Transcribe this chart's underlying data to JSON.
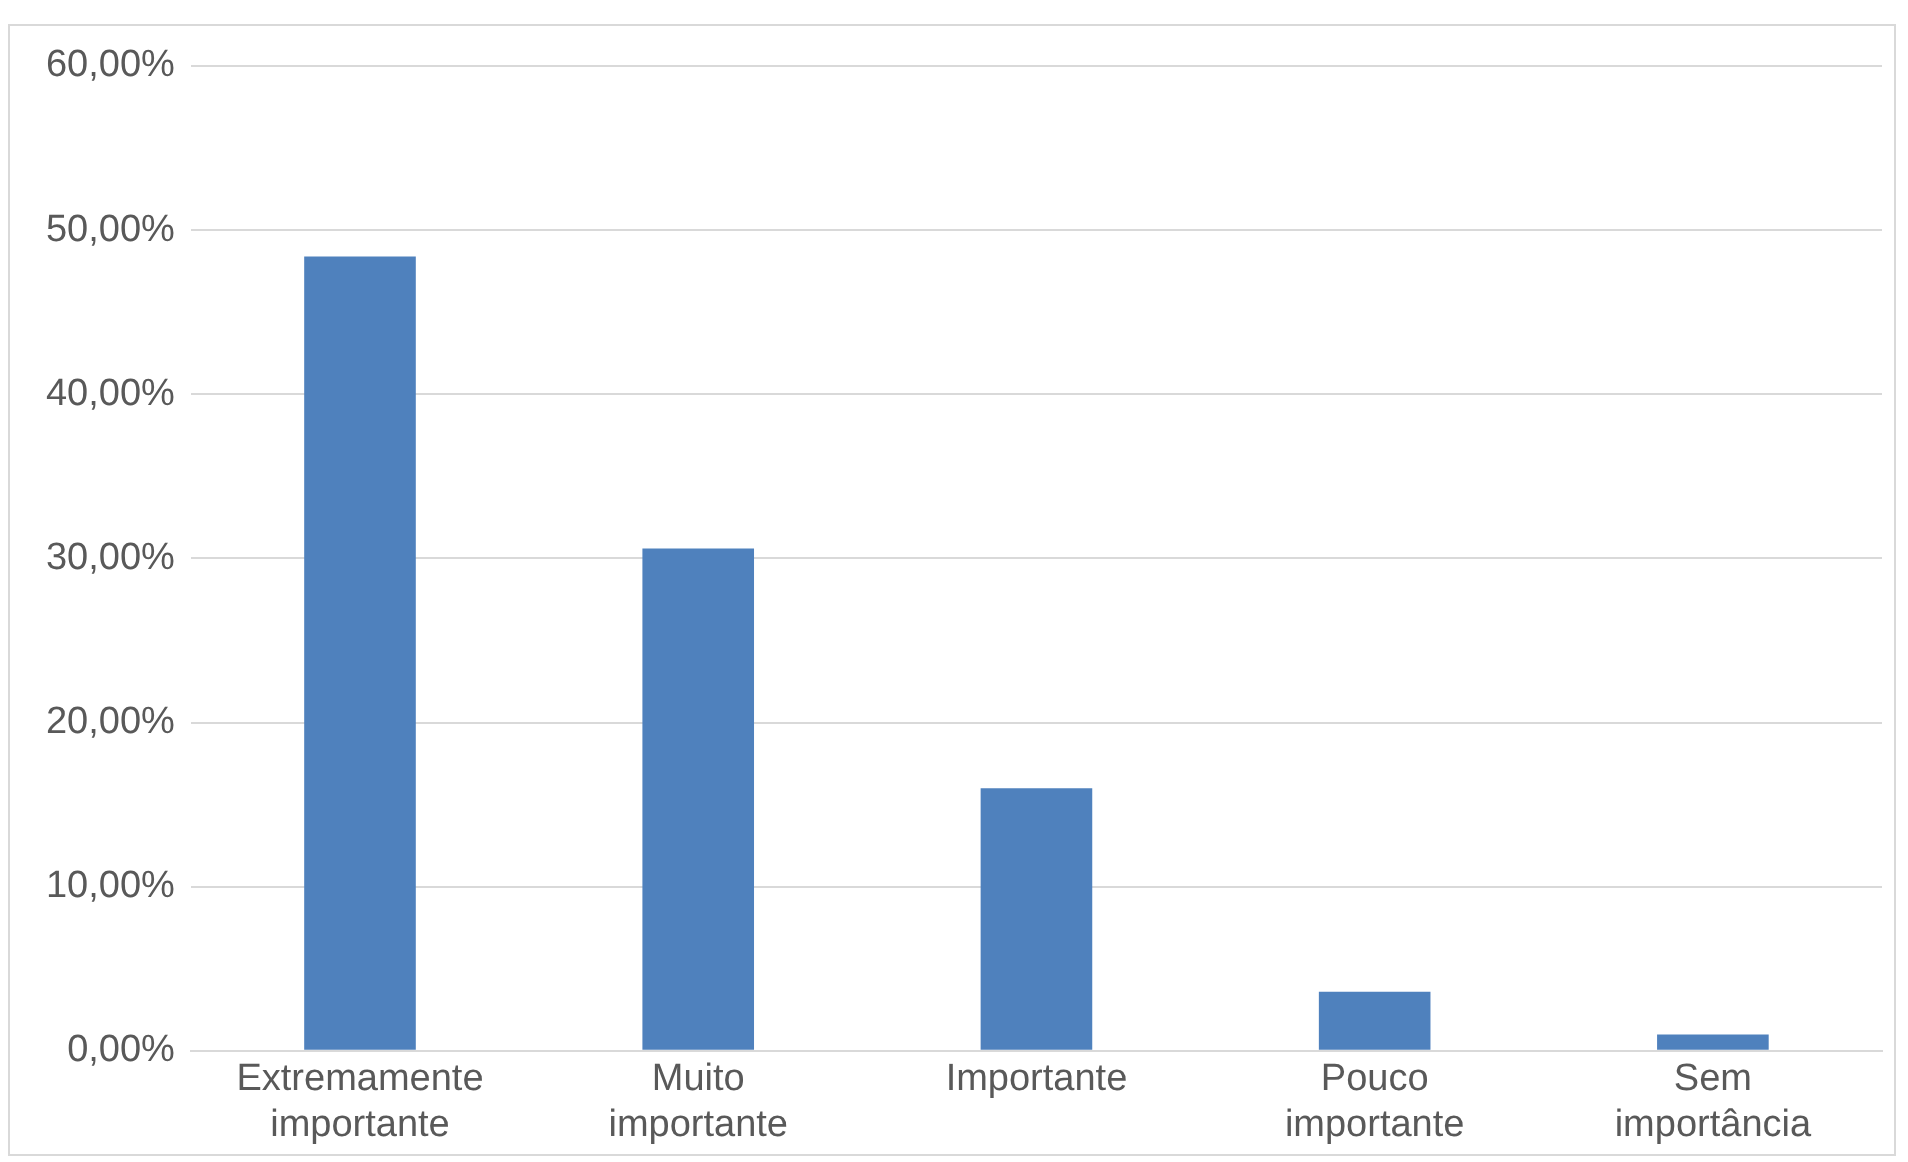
{
  "chart_data": {
    "type": "bar",
    "categories": [
      "Extremamente importante",
      "Muito importante",
      "Importante",
      "Pouco importante",
      "Sem importância"
    ],
    "values": [
      48.4,
      30.6,
      16.0,
      3.6,
      1.0
    ],
    "color": "#4f81bd",
    "ylim": [
      0,
      60
    ],
    "yticks": [
      {
        "value": 0,
        "label": "0,00%"
      },
      {
        "value": 10,
        "label": "10,00%"
      },
      {
        "value": 20,
        "label": "20,00%"
      },
      {
        "value": 30,
        "label": "30,00%"
      },
      {
        "value": 40,
        "label": "40,00%"
      },
      {
        "value": 50,
        "label": "50,00%"
      },
      {
        "value": 60,
        "label": "60,00%"
      }
    ],
    "grid": "y",
    "legend": false
  }
}
